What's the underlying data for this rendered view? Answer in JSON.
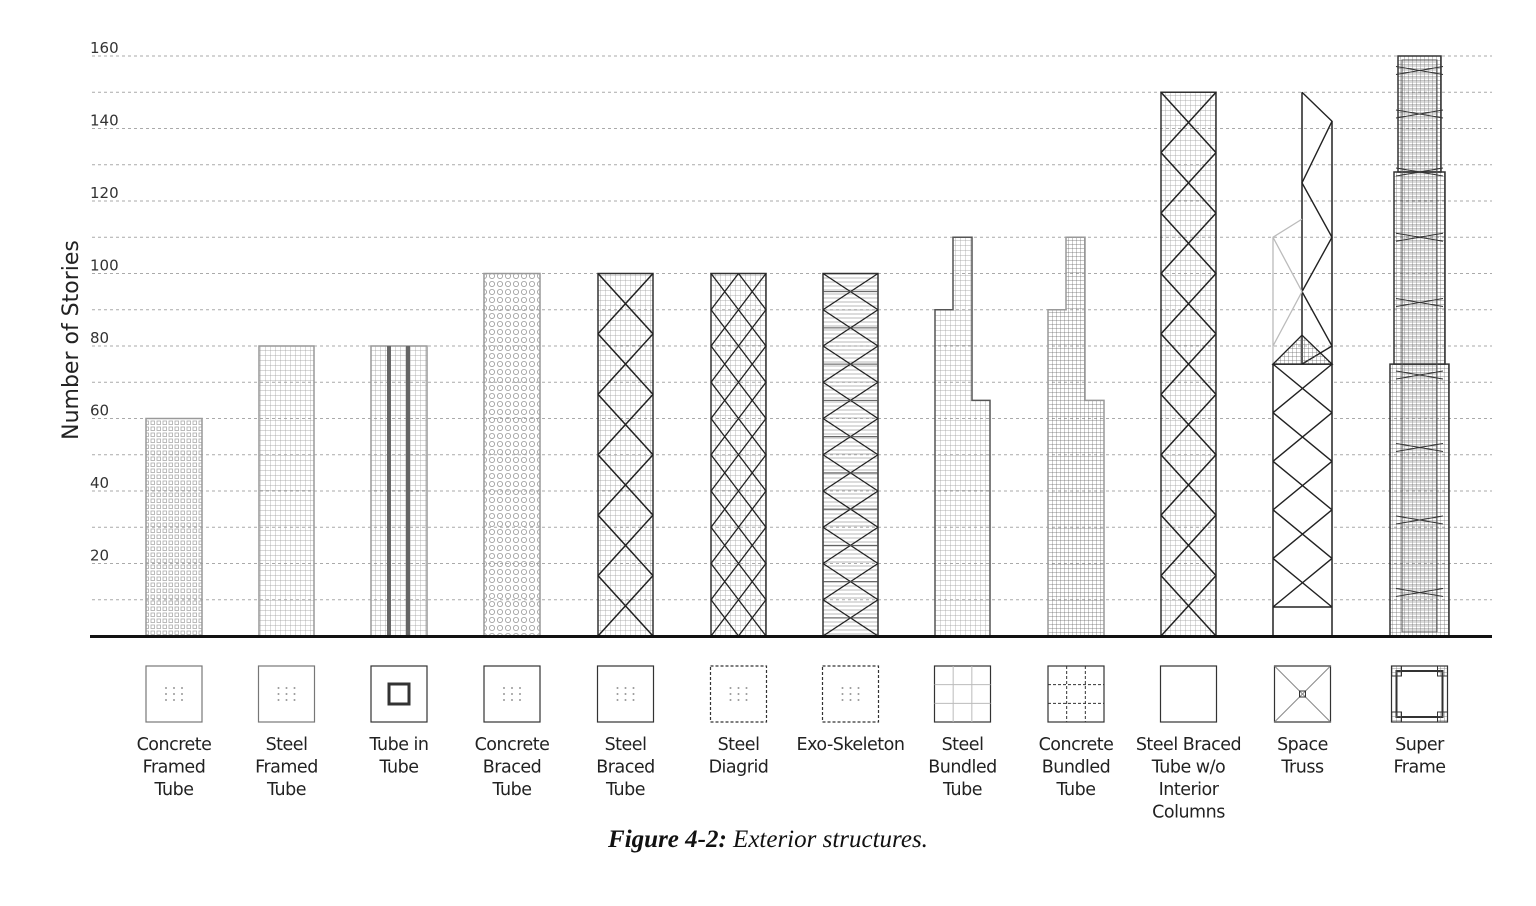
{
  "chart_data": {
    "type": "bar",
    "ylabel": "Number of Stories",
    "ylim": [
      0,
      160
    ],
    "y_ticks": [
      20,
      40,
      60,
      80,
      100,
      120,
      140,
      160
    ],
    "gridlines": "dashed, every 10 stories",
    "categories": [
      {
        "key": "concrete-framed-tube",
        "lines": [
          "Concrete",
          "Framed",
          "Tube"
        ],
        "stories": 60
      },
      {
        "key": "steel-framed-tube",
        "lines": [
          "Steel",
          "Framed",
          "Tube"
        ],
        "stories": 80
      },
      {
        "key": "tube-in-tube",
        "lines": [
          "Tube in",
          "Tube"
        ],
        "stories": 80
      },
      {
        "key": "concrete-braced-tube",
        "lines": [
          "Concrete",
          "Braced",
          "Tube"
        ],
        "stories": 100
      },
      {
        "key": "steel-braced-tube",
        "lines": [
          "Steel",
          "Braced",
          "Tube"
        ],
        "stories": 100
      },
      {
        "key": "steel-diagrid",
        "lines": [
          "Steel",
          "Diagrid"
        ],
        "stories": 100
      },
      {
        "key": "exo-skeleton",
        "lines": [
          "Exo-Skeleton"
        ],
        "stories": 100
      },
      {
        "key": "steel-bundled-tube",
        "lines": [
          "Steel",
          "Bundled",
          "Tube"
        ],
        "stories": 110
      },
      {
        "key": "concrete-bundled-tube",
        "lines": [
          "Concrete",
          "Bundled",
          "Tube"
        ],
        "stories": 110
      },
      {
        "key": "steel-braced-tube-no-interior-columns",
        "lines": [
          "Steel Braced",
          "Tube w/o",
          "Interior",
          "Columns"
        ],
        "stories": 150
      },
      {
        "key": "space-truss",
        "lines": [
          "Space",
          "Truss"
        ],
        "stories": 150
      },
      {
        "key": "super-frame",
        "lines": [
          "Super",
          "Frame"
        ],
        "stories": 160
      }
    ]
  },
  "caption": {
    "number": "Figure 4-2:",
    "text": " Exterior structures."
  }
}
